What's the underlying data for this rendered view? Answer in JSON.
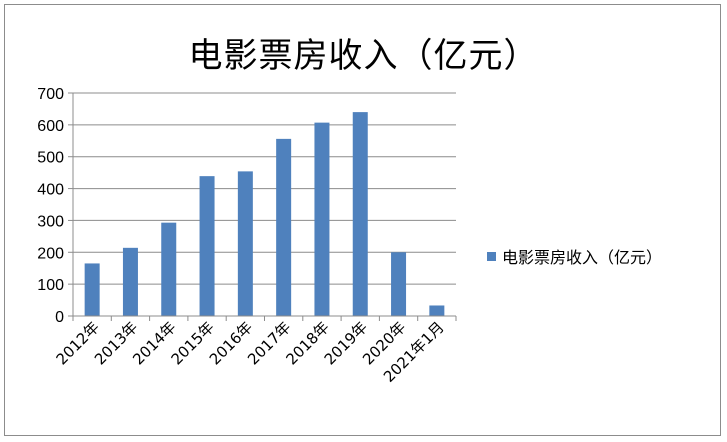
{
  "chart_data": {
    "type": "bar",
    "title": "电影票房收入（亿元）",
    "categories": [
      "2012年",
      "2013年",
      "2014年",
      "2015年",
      "2016年",
      "2017年",
      "2018年",
      "2019年",
      "2020年",
      "2021年1月"
    ],
    "series": [
      {
        "name": "电影票房收入（亿元）",
        "values": [
          165,
          214,
          293,
          439,
          454,
          556,
          607,
          640,
          200,
          33
        ],
        "color": "#4f81bd"
      }
    ],
    "ylim": [
      0,
      700
    ],
    "yticks": [
      0,
      100,
      200,
      300,
      400,
      500,
      600,
      700
    ],
    "grid": true,
    "legend_position": "right",
    "xlabel": "",
    "ylabel": ""
  }
}
